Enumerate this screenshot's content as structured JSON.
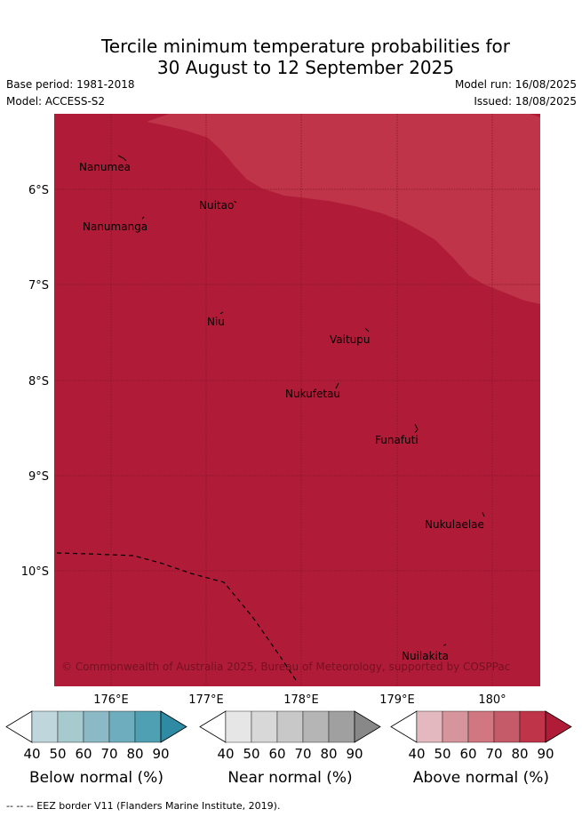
{
  "title_line1": "Tercile minimum temperature probabilities for",
  "title_line2": "30 August to 12 September 2025",
  "meta": {
    "base_period": "Base period: 1981-2018",
    "model": "Model: ACCESS-S2",
    "model_run": "Model run: 16/08/2025",
    "issued": "Issued: 18/08/2025"
  },
  "map": {
    "credit": "© Commonwealth of Australia 2025, Bureau of Meteorology, supported by COSPPac",
    "lat_labels": [
      "6°S",
      "7°S",
      "8°S",
      "9°S",
      "10°S"
    ],
    "lon_labels": [
      "176°E",
      "177°E",
      "178°E",
      "179°E",
      "180°"
    ],
    "places": [
      "Nanumea",
      "Nuitao",
      "Nanumanga",
      "Niu",
      "Vaitupu",
      "Nukufetau",
      "Funafuti",
      "Nukulaelae",
      "Nuilakita"
    ],
    "fill_colors": {
      "above_90": "#b01c37",
      "above_80": "#bf3449"
    }
  },
  "legends": [
    {
      "title": "Below normal (%)",
      "ticks": [
        "40",
        "50",
        "60",
        "70",
        "80",
        "90"
      ],
      "colors": [
        "#ffffff",
        "#bfd6dc",
        "#a6cace",
        "#8bb9c5",
        "#6eadbd",
        "#4fa0b2",
        "#2f8aa3"
      ]
    },
    {
      "title": "Near normal (%)",
      "ticks": [
        "40",
        "50",
        "60",
        "70",
        "80",
        "90"
      ],
      "colors": [
        "#ffffff",
        "#e6e6e6",
        "#d8d8d8",
        "#c8c8c8",
        "#b5b5b5",
        "#a0a0a0",
        "#888888"
      ]
    },
    {
      "title": "Above normal (%)",
      "ticks": [
        "40",
        "50",
        "60",
        "70",
        "80",
        "90"
      ],
      "colors": [
        "#ffffff",
        "#e3b8bf",
        "#d6959c",
        "#d17781",
        "#c55a68",
        "#bf3449",
        "#b01c37"
      ]
    }
  ],
  "footer": "-- -- -- EEZ border V11 (Flanders Marine Institute, 2019)."
}
